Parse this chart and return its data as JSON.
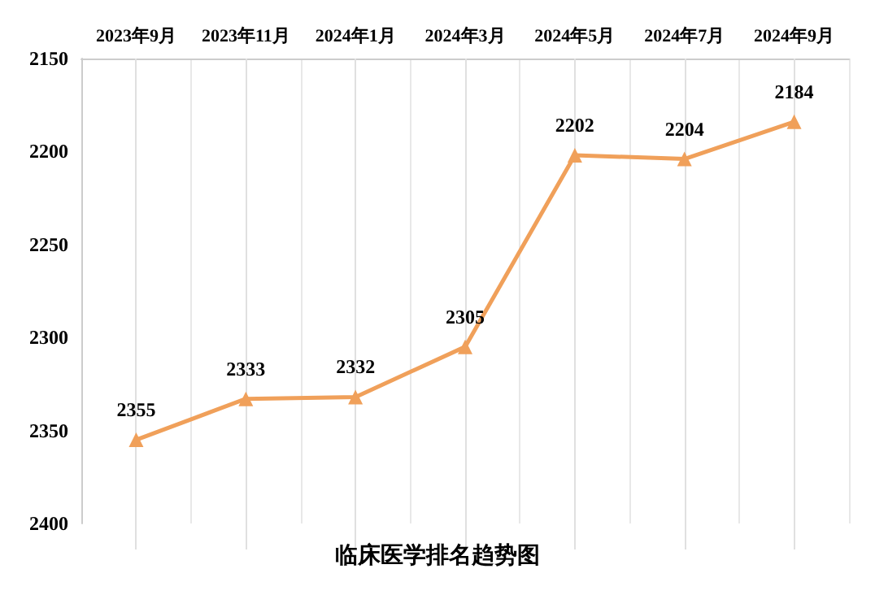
{
  "chart_data": {
    "type": "line",
    "title": "临床医学排名趋势图",
    "categories": [
      "2023年9月",
      "2023年11月",
      "2024年1月",
      "2024年3月",
      "2024年5月",
      "2024年7月",
      "2024年9月"
    ],
    "series": [
      {
        "color": "#f0a05a",
        "values": [
          2355,
          2333,
          2332,
          2305,
          2202,
          2204,
          2184
        ]
      }
    ],
    "ylim": [
      2400,
      2150
    ],
    "yticks": [
      2150,
      2200,
      2250,
      2300,
      2350,
      2400
    ],
    "grid": "x",
    "marker": "triangle",
    "line_style": "solid",
    "data_labels": true
  }
}
